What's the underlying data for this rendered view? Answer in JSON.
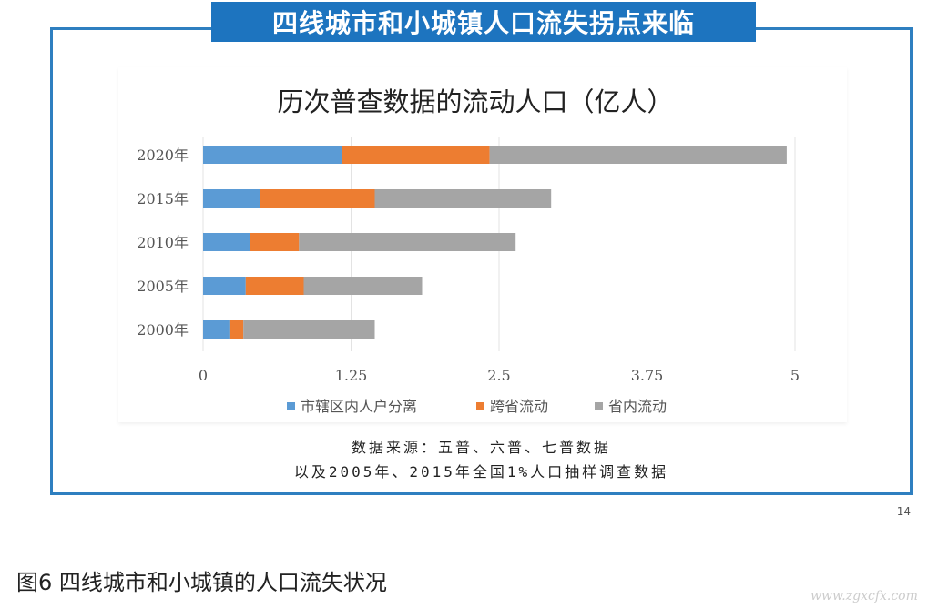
{
  "banner": {
    "title": "四线城市和小城镇人口流失拐点来临"
  },
  "chart_data": {
    "type": "bar",
    "orientation": "horizontal",
    "stacked": true,
    "title": "历次普查数据的流动人口（亿人）",
    "categories": [
      "2020年",
      "2015年",
      "2010年",
      "2005年",
      "2000年"
    ],
    "series": [
      {
        "name": "市辖区内人户分离",
        "color": "#5b9bd5",
        "values": [
          1.17,
          0.48,
          0.4,
          0.36,
          0.23
        ]
      },
      {
        "name": "跨省流动",
        "color": "#ed7d31",
        "values": [
          1.25,
          0.97,
          0.41,
          0.49,
          0.11
        ]
      },
      {
        "name": "省内流动",
        "color": "#a5a5a5",
        "values": [
          2.51,
          1.49,
          1.83,
          1.0,
          1.11
        ]
      }
    ],
    "xlim": [
      0,
      5
    ],
    "xticks": [
      "0",
      "1.25",
      "2.5",
      "3.75",
      "5"
    ],
    "xgrid": true,
    "legend_position": "bottom"
  },
  "source": {
    "line1": "数据来源：五普、六普、七普数据",
    "line2": "以及2005年、2015年全国1%人口抽样调查数据"
  },
  "page_number": "14",
  "caption": "图6 四线城市和小城镇的人口流失状况",
  "watermark": "www.zgxcfx.com"
}
